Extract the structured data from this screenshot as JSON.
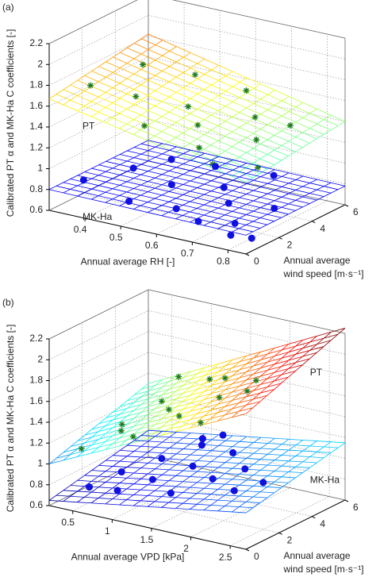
{
  "chart_data": [
    {
      "type": "surface3d",
      "title": "(a)",
      "zlabel": "Calibrated PT α and MK-Ha C coefficients [-]",
      "xlabel": "Annual average RH [-]",
      "ylabel": [
        "Annual average",
        "wind speed [m·s⁻¹]"
      ],
      "xlim": [
        0.3,
        0.85
      ],
      "xticks": [
        0.4,
        0.5,
        0.6,
        0.7,
        0.8
      ],
      "ylim": [
        0,
        6
      ],
      "yticks": [
        0,
        2,
        4,
        6
      ],
      "zlim": [
        0.6,
        2.2
      ],
      "zticks": [
        0.6,
        0.8,
        1,
        1.2,
        1.4,
        1.6,
        1.8,
        2,
        2.2
      ],
      "grid": true,
      "colormap": "jet",
      "surfaces": [
        {
          "label": "PT",
          "corners": [
            1.67,
            1.29,
            1.4,
            1.82
          ]
        },
        {
          "label": "MK-Ha",
          "corners": [
            0.8,
            0.78,
            0.78,
            0.8
          ]
        }
      ],
      "series": [
        {
          "marker": "star",
          "color": "#1f7a1f",
          "x": [
            0.36,
            0.4,
            0.45,
            0.5,
            0.52,
            0.55,
            0.6,
            0.62,
            0.65,
            0.7,
            0.72,
            0.75,
            0.78,
            0.8
          ],
          "y": [
            1.2,
            3.5,
            2.0,
            4.5,
            1.0,
            3.0,
            2.5,
            5.0,
            1.5,
            3.8,
            0.8,
            2.8,
            4.2,
            1.8
          ],
          "z": [
            1.75,
            1.8,
            1.65,
            1.7,
            1.5,
            1.55,
            1.45,
            1.6,
            1.35,
            1.5,
            1.3,
            1.4,
            1.45,
            1.25
          ]
        },
        {
          "marker": "dot",
          "color": "#1010e0",
          "x": [
            0.35,
            0.42,
            0.48,
            0.5,
            0.55,
            0.58,
            0.6,
            0.65,
            0.68,
            0.7,
            0.72,
            0.75,
            0.78,
            0.8,
            0.82
          ],
          "y": [
            1.0,
            2.5,
            3.5,
            0.5,
            2.0,
            4.0,
            1.2,
            3.0,
            0.8,
            2.2,
            4.5,
            1.5,
            0.6,
            2.8,
            1.0
          ],
          "z": [
            0.85,
            0.9,
            0.95,
            0.8,
            0.88,
            0.92,
            0.75,
            0.85,
            0.72,
            0.8,
            0.9,
            0.7,
            0.68,
            0.78,
            0.65
          ]
        }
      ]
    },
    {
      "type": "surface3d",
      "title": "(b)",
      "zlabel": "Calibrated PT α and MK-Ha C coefficients [-]",
      "xlabel": "Annual average VPD [kPa]",
      "ylabel": [
        "Annual average",
        "wind speed [m·s⁻¹]"
      ],
      "xlim": [
        0.2,
        2.7
      ],
      "xticks": [
        0.5,
        1,
        1.5,
        2,
        2.5
      ],
      "ylim": [
        0,
        6
      ],
      "yticks": [
        0,
        2,
        4,
        6
      ],
      "zlim": [
        0.6,
        2.2
      ],
      "zticks": [
        0.6,
        0.8,
        1,
        1.2,
        1.4,
        1.6,
        1.8,
        2,
        2.2
      ],
      "grid": true,
      "colormap": "jet",
      "surfaces": [
        {
          "label": "PT",
          "corners": [
            1.0,
            1.9,
            2.25,
            1.3
          ]
        },
        {
          "label": "MK-Ha",
          "corners": [
            0.65,
            0.95,
            1.15,
            0.85
          ]
        }
      ],
      "series": [
        {
          "marker": "star",
          "color": "#1f7a1f",
          "x": [
            0.4,
            0.6,
            0.8,
            1.0,
            1.1,
            1.3,
            1.4,
            1.6,
            1.7,
            1.9,
            2.0,
            2.2,
            2.4,
            0.9
          ],
          "y": [
            1.0,
            2.5,
            1.5,
            3.0,
            0.8,
            2.0,
            4.0,
            1.2,
            3.5,
            2.2,
            0.6,
            3.0,
            1.5,
            4.5
          ],
          "z": [
            1.1,
            1.25,
            1.3,
            1.5,
            1.35,
            1.55,
            1.7,
            1.6,
            1.8,
            1.75,
            1.65,
            1.9,
            1.95,
            1.6
          ]
        },
        {
          "marker": "dot",
          "color": "#1010e0",
          "x": [
            0.5,
            0.7,
            0.9,
            1.0,
            1.2,
            1.3,
            1.5,
            1.6,
            1.8,
            1.9,
            2.1,
            2.3,
            2.5,
            1.1,
            1.4
          ],
          "y": [
            1.0,
            2.0,
            0.8,
            3.0,
            1.5,
            4.0,
            2.5,
            0.7,
            3.5,
            1.8,
            2.8,
            1.2,
            2.0,
            5.0,
            4.8
          ],
          "z": [
            0.75,
            0.85,
            0.8,
            0.95,
            0.9,
            1.05,
            1.0,
            0.9,
            1.1,
            1.0,
            1.05,
            1.0,
            1.05,
            1.0,
            1.1
          ]
        }
      ]
    }
  ]
}
